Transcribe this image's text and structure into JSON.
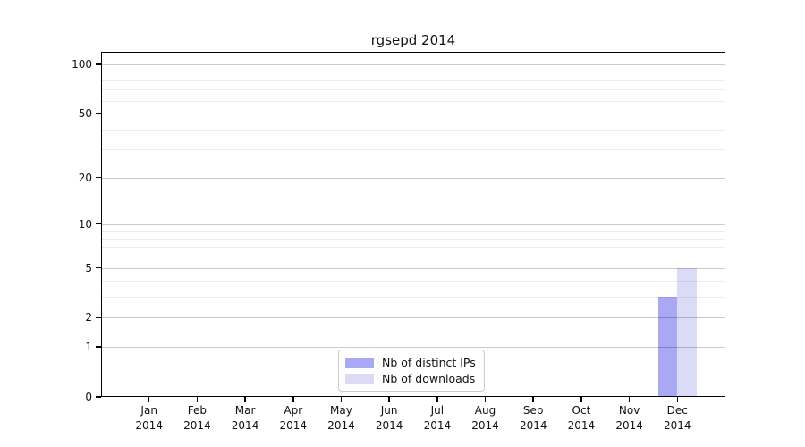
{
  "chart_data": {
    "type": "bar",
    "title": "rgsepd 2014",
    "categories": [
      "Jan 2014",
      "Feb 2014",
      "Mar 2014",
      "Apr 2014",
      "May 2014",
      "Jun 2014",
      "Jul 2014",
      "Aug 2014",
      "Sep 2014",
      "Oct 2014",
      "Nov 2014",
      "Dec 2014"
    ],
    "series": [
      {
        "name": "Nb of distinct IPs",
        "color": "#a8a8f4",
        "values": [
          0,
          0,
          0,
          0,
          0,
          0,
          0,
          0,
          0,
          0,
          0,
          3
        ]
      },
      {
        "name": "Nb of downloads",
        "color": "#dbdbf8",
        "values": [
          0,
          0,
          0,
          0,
          0,
          0,
          0,
          0,
          0,
          0,
          0,
          5
        ]
      }
    ],
    "xlabel": "",
    "ylabel": "",
    "y_scale": "log1p",
    "ylim": [
      0,
      119
    ],
    "y_ticks": [
      0,
      1,
      2,
      5,
      10,
      20,
      50,
      100
    ],
    "y_minor_gridlines": [
      3,
      4,
      6,
      7,
      8,
      9,
      30,
      40,
      60,
      70,
      80,
      90
    ],
    "grid": "horizontal",
    "legend_position": "lower center"
  }
}
